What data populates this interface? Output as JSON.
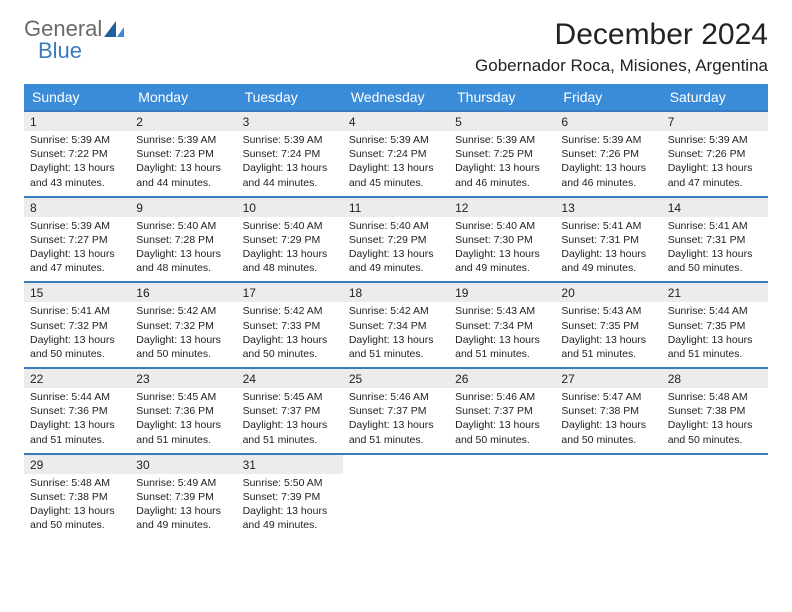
{
  "logo": {
    "word1": "General",
    "word2": "Blue"
  },
  "title": "December 2024",
  "location": "Gobernador Roca, Misiones, Argentina",
  "colors": {
    "header_bg": "#3a8bd8",
    "header_text": "#ffffff",
    "accent_border": "#3a7bbf",
    "daynum_bg": "#ececec",
    "text": "#222222",
    "logo_gray": "#6a6a6a",
    "logo_blue": "#3a7bbf",
    "page_bg": "#ffffff"
  },
  "day_headers": [
    "Sunday",
    "Monday",
    "Tuesday",
    "Wednesday",
    "Thursday",
    "Friday",
    "Saturday"
  ],
  "weeks": [
    {
      "nums": [
        "1",
        "2",
        "3",
        "4",
        "5",
        "6",
        "7"
      ],
      "cells": [
        {
          "sunrise": "Sunrise: 5:39 AM",
          "sunset": "Sunset: 7:22 PM",
          "d1": "Daylight: 13 hours",
          "d2": "and 43 minutes."
        },
        {
          "sunrise": "Sunrise: 5:39 AM",
          "sunset": "Sunset: 7:23 PM",
          "d1": "Daylight: 13 hours",
          "d2": "and 44 minutes."
        },
        {
          "sunrise": "Sunrise: 5:39 AM",
          "sunset": "Sunset: 7:24 PM",
          "d1": "Daylight: 13 hours",
          "d2": "and 44 minutes."
        },
        {
          "sunrise": "Sunrise: 5:39 AM",
          "sunset": "Sunset: 7:24 PM",
          "d1": "Daylight: 13 hours",
          "d2": "and 45 minutes."
        },
        {
          "sunrise": "Sunrise: 5:39 AM",
          "sunset": "Sunset: 7:25 PM",
          "d1": "Daylight: 13 hours",
          "d2": "and 46 minutes."
        },
        {
          "sunrise": "Sunrise: 5:39 AM",
          "sunset": "Sunset: 7:26 PM",
          "d1": "Daylight: 13 hours",
          "d2": "and 46 minutes."
        },
        {
          "sunrise": "Sunrise: 5:39 AM",
          "sunset": "Sunset: 7:26 PM",
          "d1": "Daylight: 13 hours",
          "d2": "and 47 minutes."
        }
      ]
    },
    {
      "nums": [
        "8",
        "9",
        "10",
        "11",
        "12",
        "13",
        "14"
      ],
      "cells": [
        {
          "sunrise": "Sunrise: 5:39 AM",
          "sunset": "Sunset: 7:27 PM",
          "d1": "Daylight: 13 hours",
          "d2": "and 47 minutes."
        },
        {
          "sunrise": "Sunrise: 5:40 AM",
          "sunset": "Sunset: 7:28 PM",
          "d1": "Daylight: 13 hours",
          "d2": "and 48 minutes."
        },
        {
          "sunrise": "Sunrise: 5:40 AM",
          "sunset": "Sunset: 7:29 PM",
          "d1": "Daylight: 13 hours",
          "d2": "and 48 minutes."
        },
        {
          "sunrise": "Sunrise: 5:40 AM",
          "sunset": "Sunset: 7:29 PM",
          "d1": "Daylight: 13 hours",
          "d2": "and 49 minutes."
        },
        {
          "sunrise": "Sunrise: 5:40 AM",
          "sunset": "Sunset: 7:30 PM",
          "d1": "Daylight: 13 hours",
          "d2": "and 49 minutes."
        },
        {
          "sunrise": "Sunrise: 5:41 AM",
          "sunset": "Sunset: 7:31 PM",
          "d1": "Daylight: 13 hours",
          "d2": "and 49 minutes."
        },
        {
          "sunrise": "Sunrise: 5:41 AM",
          "sunset": "Sunset: 7:31 PM",
          "d1": "Daylight: 13 hours",
          "d2": "and 50 minutes."
        }
      ]
    },
    {
      "nums": [
        "15",
        "16",
        "17",
        "18",
        "19",
        "20",
        "21"
      ],
      "cells": [
        {
          "sunrise": "Sunrise: 5:41 AM",
          "sunset": "Sunset: 7:32 PM",
          "d1": "Daylight: 13 hours",
          "d2": "and 50 minutes."
        },
        {
          "sunrise": "Sunrise: 5:42 AM",
          "sunset": "Sunset: 7:32 PM",
          "d1": "Daylight: 13 hours",
          "d2": "and 50 minutes."
        },
        {
          "sunrise": "Sunrise: 5:42 AM",
          "sunset": "Sunset: 7:33 PM",
          "d1": "Daylight: 13 hours",
          "d2": "and 50 minutes."
        },
        {
          "sunrise": "Sunrise: 5:42 AM",
          "sunset": "Sunset: 7:34 PM",
          "d1": "Daylight: 13 hours",
          "d2": "and 51 minutes."
        },
        {
          "sunrise": "Sunrise: 5:43 AM",
          "sunset": "Sunset: 7:34 PM",
          "d1": "Daylight: 13 hours",
          "d2": "and 51 minutes."
        },
        {
          "sunrise": "Sunrise: 5:43 AM",
          "sunset": "Sunset: 7:35 PM",
          "d1": "Daylight: 13 hours",
          "d2": "and 51 minutes."
        },
        {
          "sunrise": "Sunrise: 5:44 AM",
          "sunset": "Sunset: 7:35 PM",
          "d1": "Daylight: 13 hours",
          "d2": "and 51 minutes."
        }
      ]
    },
    {
      "nums": [
        "22",
        "23",
        "24",
        "25",
        "26",
        "27",
        "28"
      ],
      "cells": [
        {
          "sunrise": "Sunrise: 5:44 AM",
          "sunset": "Sunset: 7:36 PM",
          "d1": "Daylight: 13 hours",
          "d2": "and 51 minutes."
        },
        {
          "sunrise": "Sunrise: 5:45 AM",
          "sunset": "Sunset: 7:36 PM",
          "d1": "Daylight: 13 hours",
          "d2": "and 51 minutes."
        },
        {
          "sunrise": "Sunrise: 5:45 AM",
          "sunset": "Sunset: 7:37 PM",
          "d1": "Daylight: 13 hours",
          "d2": "and 51 minutes."
        },
        {
          "sunrise": "Sunrise: 5:46 AM",
          "sunset": "Sunset: 7:37 PM",
          "d1": "Daylight: 13 hours",
          "d2": "and 51 minutes."
        },
        {
          "sunrise": "Sunrise: 5:46 AM",
          "sunset": "Sunset: 7:37 PM",
          "d1": "Daylight: 13 hours",
          "d2": "and 50 minutes."
        },
        {
          "sunrise": "Sunrise: 5:47 AM",
          "sunset": "Sunset: 7:38 PM",
          "d1": "Daylight: 13 hours",
          "d2": "and 50 minutes."
        },
        {
          "sunrise": "Sunrise: 5:48 AM",
          "sunset": "Sunset: 7:38 PM",
          "d1": "Daylight: 13 hours",
          "d2": "and 50 minutes."
        }
      ]
    },
    {
      "nums": [
        "29",
        "30",
        "31",
        "",
        "",
        "",
        ""
      ],
      "cells": [
        {
          "sunrise": "Sunrise: 5:48 AM",
          "sunset": "Sunset: 7:38 PM",
          "d1": "Daylight: 13 hours",
          "d2": "and 50 minutes."
        },
        {
          "sunrise": "Sunrise: 5:49 AM",
          "sunset": "Sunset: 7:39 PM",
          "d1": "Daylight: 13 hours",
          "d2": "and 49 minutes."
        },
        {
          "sunrise": "Sunrise: 5:50 AM",
          "sunset": "Sunset: 7:39 PM",
          "d1": "Daylight: 13 hours",
          "d2": "and 49 minutes."
        },
        null,
        null,
        null,
        null
      ]
    }
  ]
}
